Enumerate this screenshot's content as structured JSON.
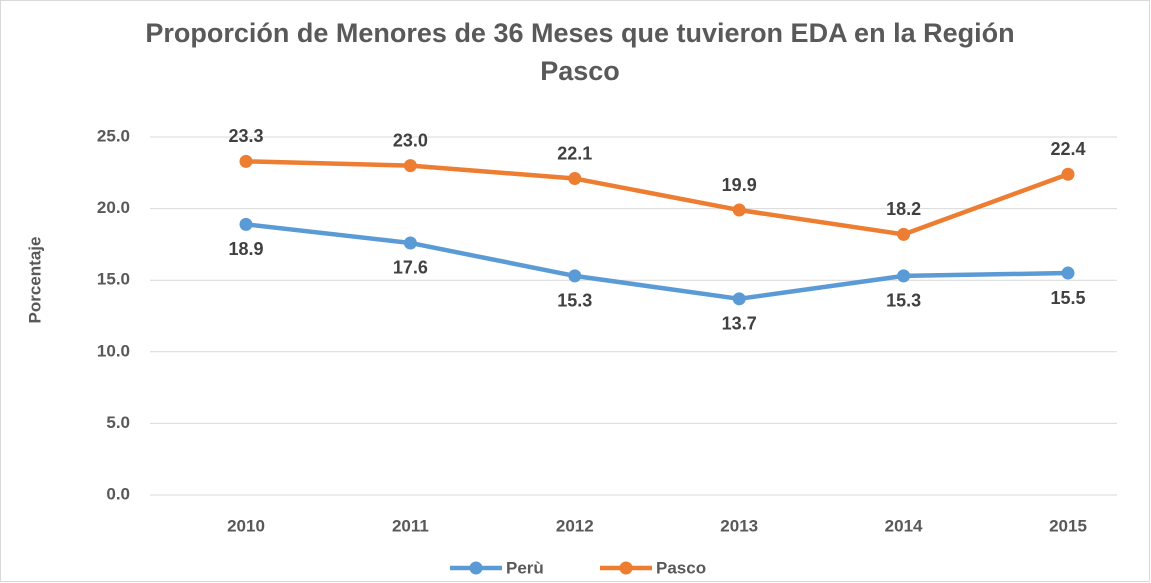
{
  "chart_data": {
    "type": "line",
    "title": "Proporción de Menores de 36 Meses que tuvieron EDA en la Región Pasco",
    "y_label": "Porcentaje",
    "categories": [
      "2010",
      "2011",
      "2012",
      "2013",
      "2014",
      "2015"
    ],
    "series": [
      {
        "name": "Perù",
        "color": "#5b9bd5",
        "values": [
          18.9,
          17.6,
          15.3,
          13.7,
          15.3,
          15.5
        ],
        "value_labels": [
          "18.9",
          "17.6",
          "15.3",
          "13.7",
          "15.3",
          "15.5"
        ]
      },
      {
        "name": "Pasco",
        "color": "#ed7d31",
        "values": [
          23.3,
          23.0,
          22.1,
          19.9,
          18.2,
          22.4
        ],
        "value_labels": [
          "23.3",
          "23.0",
          "22.1",
          "19.9",
          "18.2",
          "22.4"
        ]
      }
    ],
    "ylim": [
      0,
      25
    ],
    "yticks": [
      {
        "value": 0,
        "label": "0.0"
      },
      {
        "value": 5,
        "label": "5.0"
      },
      {
        "value": 10,
        "label": "10.0"
      },
      {
        "value": 15,
        "label": "15.0"
      },
      {
        "value": 20,
        "label": "20.0"
      },
      {
        "value": 25,
        "label": "25.0"
      }
    ],
    "grid": true,
    "legend": "bottom"
  }
}
